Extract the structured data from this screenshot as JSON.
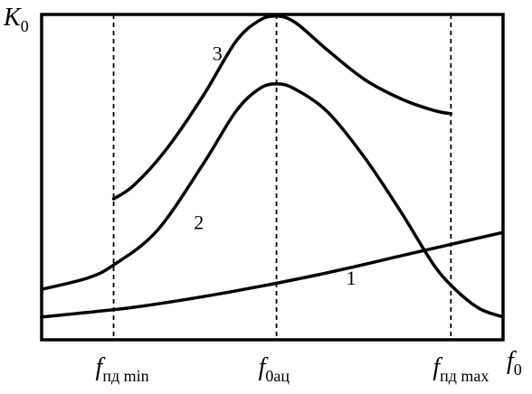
{
  "chart_data": {
    "type": "line",
    "title": "",
    "ylabel": {
      "main": "K",
      "sub": "0"
    },
    "xlabel": {
      "main": "f",
      "sub": "0"
    },
    "xlim": [
      0,
      1
    ],
    "ylim": [
      0,
      1
    ],
    "grid": false,
    "markers": [
      {
        "x": 0.156,
        "main": "f",
        "sub": "пд min"
      },
      {
        "x": 0.509,
        "main": "f",
        "sub": "0ац"
      },
      {
        "x": 0.887,
        "main": "f",
        "sub": "пд max"
      }
    ],
    "series": [
      {
        "label": "1",
        "label_at": [
          0.66,
          0.17
        ],
        "x": [
          0.0,
          0.2,
          0.4,
          0.6,
          0.8,
          1.0
        ],
        "y": [
          0.07,
          0.1,
          0.145,
          0.2,
          0.265,
          0.33
        ]
      },
      {
        "label": "2",
        "label_at": [
          0.33,
          0.34
        ],
        "x": [
          0.0,
          0.1,
          0.156,
          0.25,
          0.35,
          0.42,
          0.47,
          0.509,
          0.55,
          0.62,
          0.7,
          0.78,
          0.85,
          0.9,
          0.95,
          1.0
        ],
        "y": [
          0.155,
          0.19,
          0.23,
          0.335,
          0.54,
          0.7,
          0.77,
          0.787,
          0.77,
          0.7,
          0.56,
          0.39,
          0.23,
          0.15,
          0.095,
          0.07
        ]
      },
      {
        "label": "3",
        "label_at": [
          0.37,
          0.86
        ],
        "x": [
          0.156,
          0.2,
          0.27,
          0.35,
          0.42,
          0.47,
          0.509,
          0.55,
          0.62,
          0.7,
          0.78,
          0.85,
          0.887
        ],
        "y": [
          0.433,
          0.475,
          0.585,
          0.75,
          0.915,
          0.98,
          0.995,
          0.975,
          0.89,
          0.8,
          0.74,
          0.705,
          0.695
        ]
      }
    ]
  }
}
